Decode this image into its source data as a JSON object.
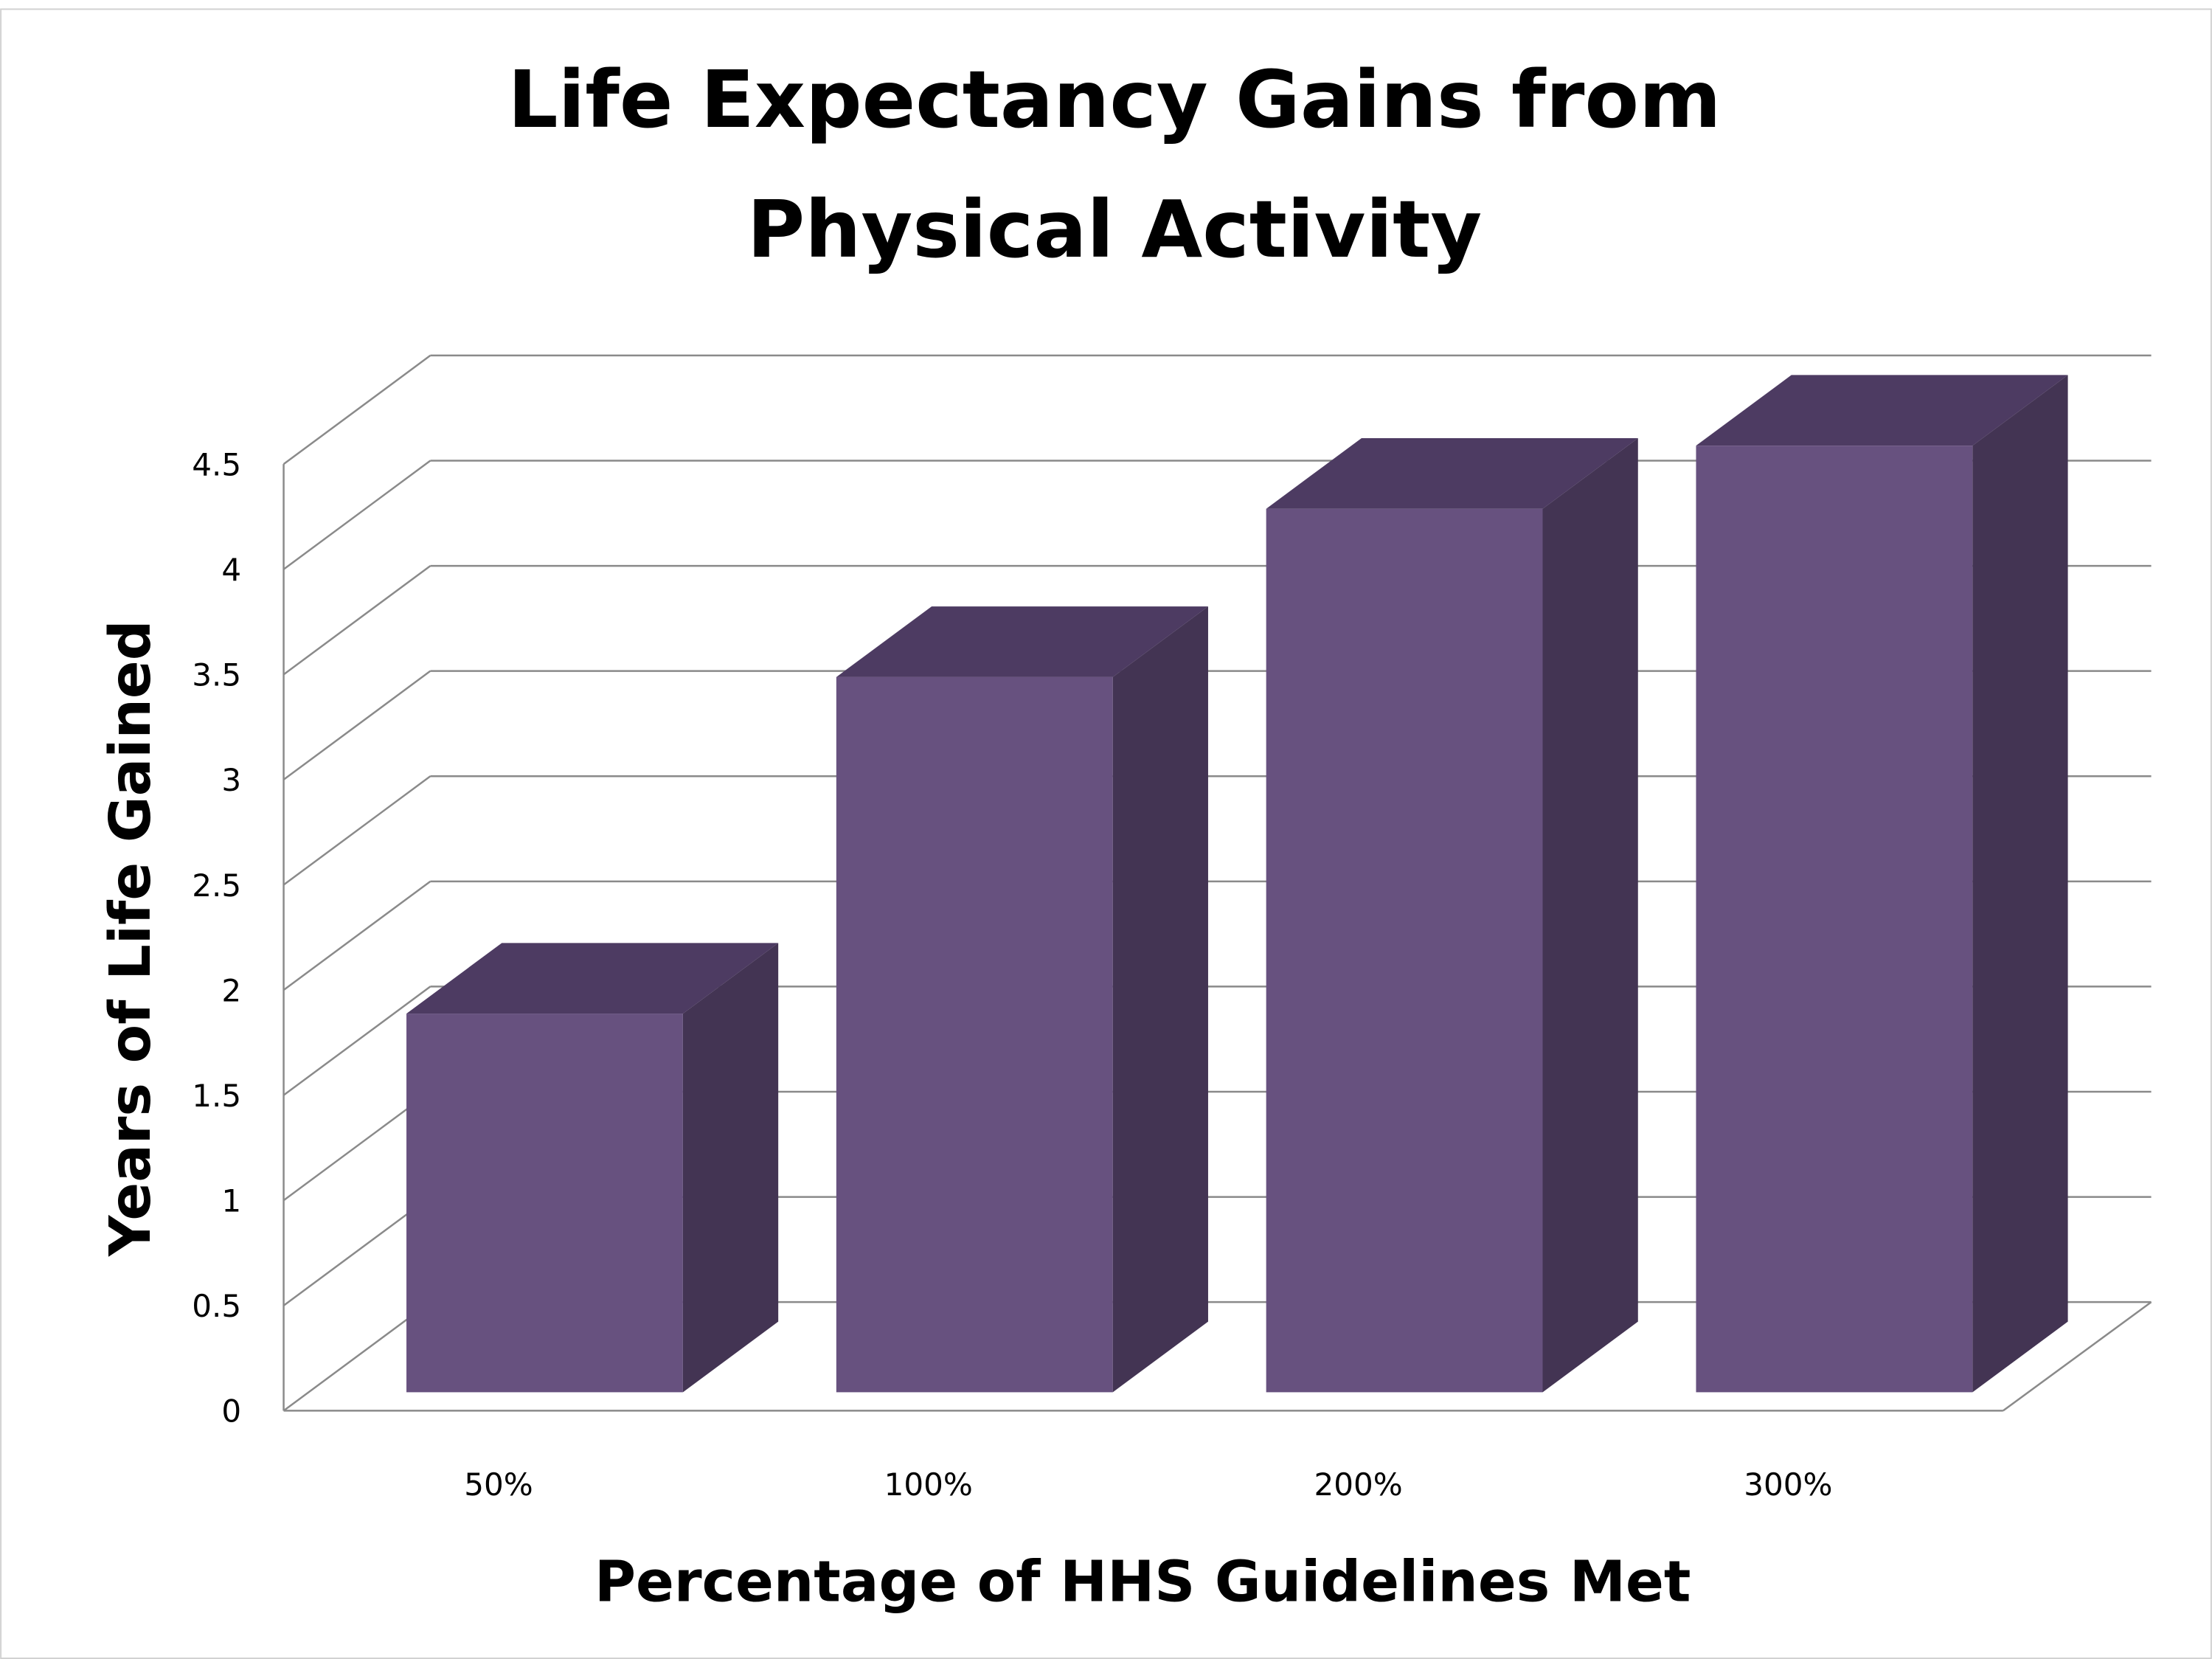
{
  "chart_data": {
    "type": "bar",
    "style": "3d-column",
    "title": [
      "Life Expectancy Gains from",
      "Physical Activity"
    ],
    "xlabel": "Percentage of HHS Guidelines Met",
    "ylabel": "Years of Life Gained",
    "categories": [
      "50%",
      "100%",
      "200%",
      "300%"
    ],
    "values": [
      1.8,
      3.4,
      4.2,
      4.5
    ],
    "ylim": [
      0,
      4.5
    ],
    "yticks": [
      "0",
      "0.5",
      "1",
      "1.5",
      "2",
      "2.5",
      "3",
      "3.5",
      "4",
      "4.5"
    ],
    "grid": true,
    "legend": "none",
    "colors": {
      "front": "#67517F",
      "top": "#4D3B62",
      "side": "#433453",
      "grid": "#8a8a8a"
    }
  }
}
